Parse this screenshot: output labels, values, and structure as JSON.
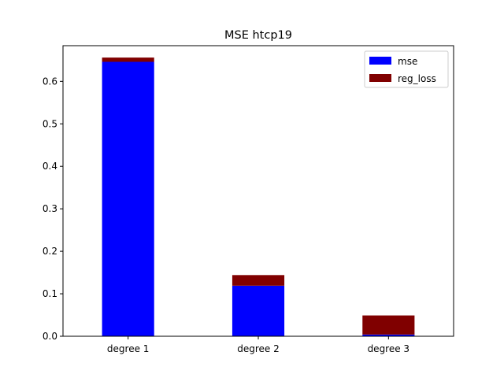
{
  "chart_data": {
    "type": "bar",
    "stacked": true,
    "title": "MSE htcp19",
    "xlabel": "",
    "ylabel": "",
    "categories": [
      "degree 1",
      "degree 2",
      "degree 3"
    ],
    "series": [
      {
        "name": "mse",
        "color": "#0000ff",
        "values": [
          0.646,
          0.119,
          0.004
        ]
      },
      {
        "name": "reg_loss",
        "color": "#800000",
        "values": [
          0.01,
          0.025,
          0.045
        ]
      }
    ],
    "ylim": [
      0,
      0.684
    ],
    "yticks": [
      "0.0",
      "0.1",
      "0.2",
      "0.3",
      "0.4",
      "0.5",
      "0.6"
    ],
    "legend_position": "top-right",
    "grid": false
  }
}
